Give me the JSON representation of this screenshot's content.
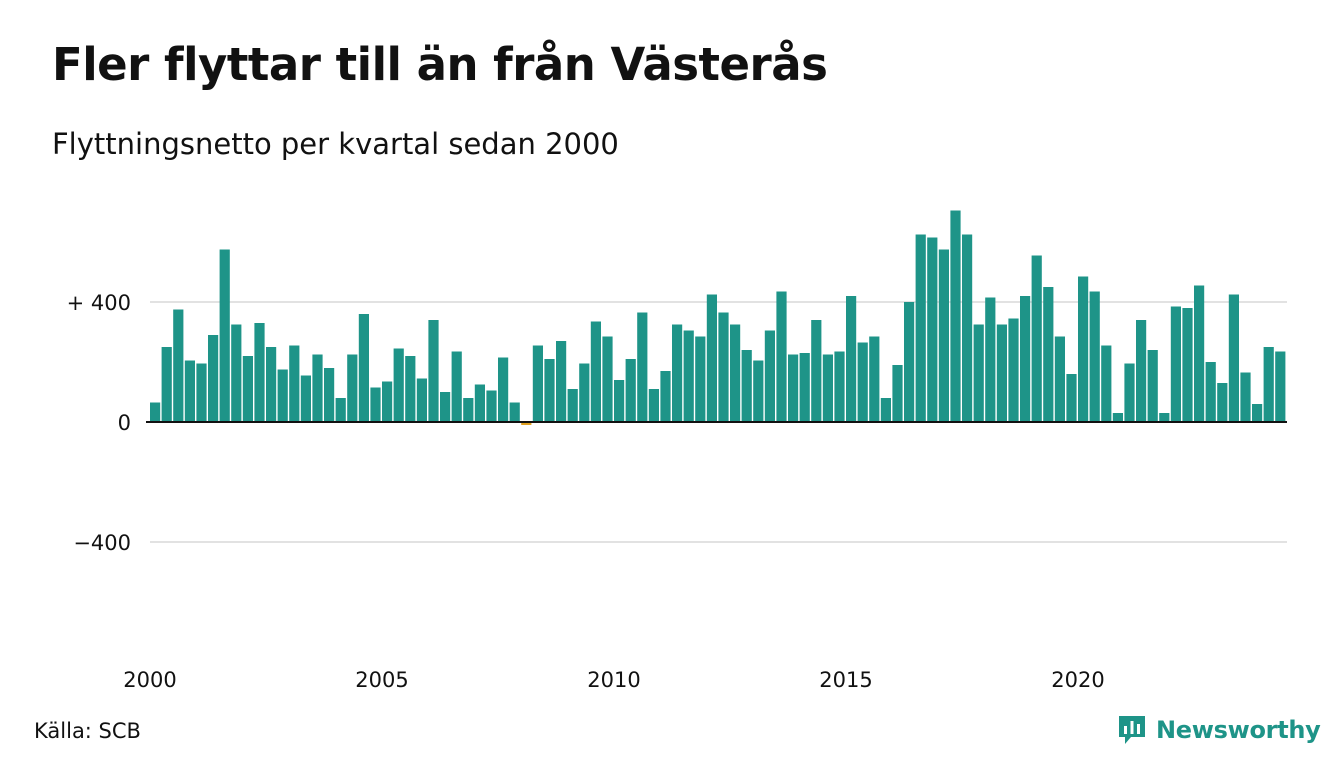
{
  "chart_data": {
    "type": "bar",
    "title": "Fler flyttar till än från Västerås",
    "subtitle": "Flyttningsnetto per kvartal sedan 2000",
    "source": "Källa: SCB",
    "brand": "Newsworthy",
    "x_start": "2000 Q1",
    "frequency": "quarterly",
    "x_ticks": [
      "2000",
      "2005",
      "2010",
      "2015",
      "2020"
    ],
    "y_ticks": [
      {
        "value": 400,
        "label": "+ 400"
      },
      {
        "value": 0,
        "label": "0"
      },
      {
        "value": -400,
        "label": "−400"
      }
    ],
    "ylim": [
      -720,
      720
    ],
    "grid": true,
    "colors": {
      "positive": "#1e9488",
      "negative": "#e0a020",
      "gridline": "#e2e2e2",
      "zeroline": "#111111"
    },
    "values": [
      65,
      250,
      375,
      205,
      195,
      290,
      575,
      325,
      220,
      330,
      250,
      175,
      255,
      155,
      225,
      180,
      80,
      225,
      360,
      115,
      135,
      245,
      220,
      145,
      340,
      100,
      235,
      80,
      125,
      105,
      215,
      65,
      -10,
      255,
      210,
      270,
      110,
      195,
      335,
      285,
      140,
      210,
      365,
      110,
      170,
      325,
      305,
      285,
      425,
      365,
      325,
      240,
      205,
      305,
      435,
      225,
      230,
      340,
      225,
      235,
      420,
      265,
      285,
      80,
      190,
      400,
      625,
      615,
      575,
      705,
      625,
      325,
      415,
      325,
      345,
      420,
      555,
      450,
      285,
      160,
      485,
      435,
      255,
      30,
      195,
      340,
      240,
      30,
      385,
      380,
      455,
      200,
      130,
      425,
      165,
      60,
      250,
      235
    ]
  }
}
